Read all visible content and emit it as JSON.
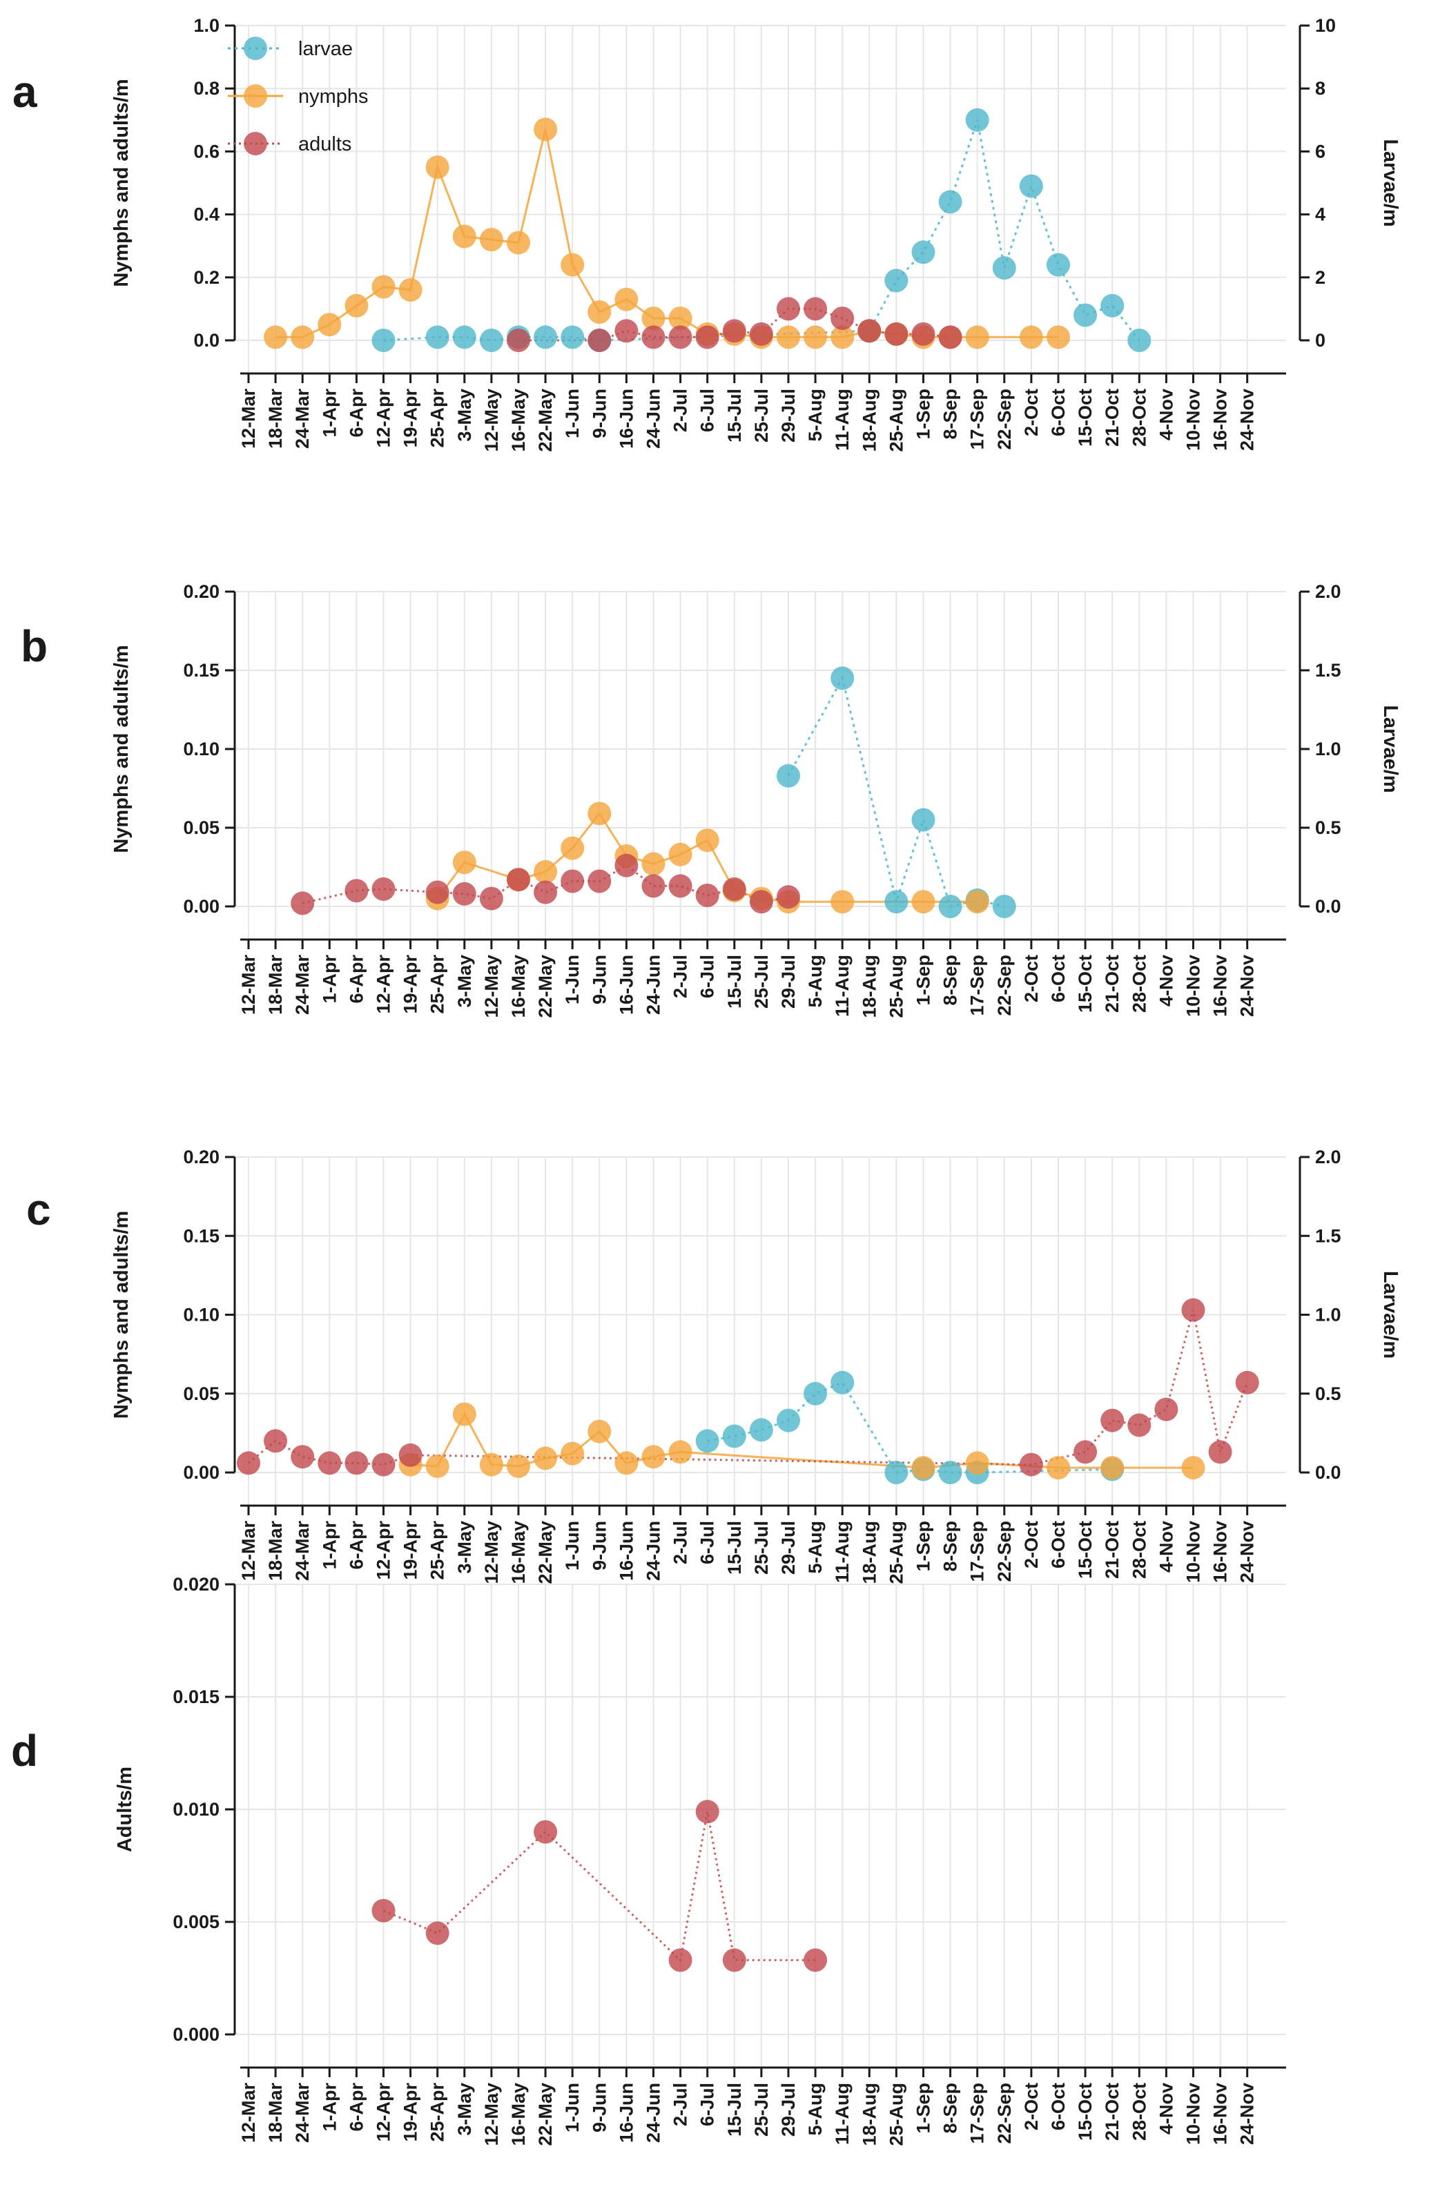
{
  "colors": {
    "larvae": "#4fb7cb",
    "nymphs": "#f5a43b",
    "adults": "#c0494d",
    "grid": "#e6e6e6",
    "axis": "#1a1a1a"
  },
  "chart_data": [
    {
      "type": "line",
      "panel_label": "a",
      "categories": [
        "12-Mar",
        "18-Mar",
        "24-Mar",
        "1-Apr",
        "6-Apr",
        "12-Apr",
        "19-Apr",
        "25-Apr",
        "3-May",
        "12-May",
        "16-May",
        "22-May",
        "1-Jun",
        "9-Jun",
        "16-Jun",
        "24-Jun",
        "2-Jul",
        "6-Jul",
        "15-Jul",
        "25-Jul",
        "29-Jul",
        "5-Aug",
        "11-Aug",
        "18-Aug",
        "25-Aug",
        "1-Sep",
        "8-Sep",
        "17-Sep",
        "22-Sep",
        "2-Oct",
        "6-Oct",
        "15-Oct",
        "21-Oct",
        "28-Oct",
        "4-Nov",
        "10-Nov",
        "16-Nov",
        "24-Nov"
      ],
      "ylabel": "Nymphs and adults/m",
      "ylim": [
        0,
        1.0
      ],
      "yticks": [
        "0.0",
        "0.2",
        "0.4",
        "0.6",
        "0.8",
        "1.0"
      ],
      "y2label": "Larvae/m",
      "y2lim": [
        0,
        10
      ],
      "y2ticks": [
        "0",
        "2",
        "4",
        "6",
        "8",
        "10"
      ],
      "legend": [
        "larvae",
        "nymphs",
        "adults"
      ],
      "series": [
        {
          "name": "nymphs",
          "axis": "left",
          "points": [
            [
              "18-Mar",
              0.01
            ],
            [
              "24-Mar",
              0.01
            ],
            [
              "1-Apr",
              0.05
            ],
            [
              "6-Apr",
              0.11
            ],
            [
              "12-Apr",
              0.17
            ],
            [
              "19-Apr",
              0.16
            ],
            [
              "25-Apr",
              0.55
            ],
            [
              "3-May",
              0.33
            ],
            [
              "12-May",
              0.32
            ],
            [
              "16-May",
              0.31
            ],
            [
              "22-May",
              0.67
            ],
            [
              "1-Jun",
              0.24
            ],
            [
              "9-Jun",
              0.09
            ],
            [
              "16-Jun",
              0.13
            ],
            [
              "24-Jun",
              0.07
            ],
            [
              "2-Jul",
              0.07
            ],
            [
              "6-Jul",
              0.02
            ],
            [
              "15-Jul",
              0.02
            ],
            [
              "25-Jul",
              0.01
            ],
            [
              "29-Jul",
              0.01
            ],
            [
              "5-Aug",
              0.01
            ],
            [
              "11-Aug",
              0.01
            ],
            [
              "18-Aug",
              0.03
            ],
            [
              "25-Aug",
              0.02
            ],
            [
              "1-Sep",
              0.01
            ],
            [
              "8-Sep",
              0.01
            ],
            [
              "17-Sep",
              0.01
            ],
            [
              "2-Oct",
              0.01
            ],
            [
              "6-Oct",
              0.01
            ]
          ]
        },
        {
          "name": "larvae",
          "axis": "right",
          "points": [
            [
              "12-Apr",
              0.0
            ],
            [
              "25-Apr",
              0.1
            ],
            [
              "3-May",
              0.1
            ],
            [
              "12-May",
              0.0
            ],
            [
              "16-May",
              0.1
            ],
            [
              "22-May",
              0.1
            ],
            [
              "1-Jun",
              0.1
            ],
            [
              "9-Jun",
              0.0
            ],
            [
              "18-Aug",
              0.3
            ],
            [
              "25-Aug",
              1.9
            ],
            [
              "1-Sep",
              2.8
            ],
            [
              "8-Sep",
              4.4
            ],
            [
              "17-Sep",
              7.0
            ],
            [
              "22-Sep",
              2.3
            ],
            [
              "2-Oct",
              4.9
            ],
            [
              "6-Oct",
              2.4
            ],
            [
              "15-Oct",
              0.8
            ],
            [
              "21-Oct",
              1.1
            ],
            [
              "28-Oct",
              0.0
            ]
          ]
        },
        {
          "name": "adults",
          "axis": "left",
          "points": [
            [
              "16-May",
              0.0
            ],
            [
              "9-Jun",
              0.0
            ],
            [
              "16-Jun",
              0.03
            ],
            [
              "24-Jun",
              0.01
            ],
            [
              "2-Jul",
              0.01
            ],
            [
              "6-Jul",
              0.01
            ],
            [
              "15-Jul",
              0.03
            ],
            [
              "25-Jul",
              0.02
            ],
            [
              "29-Jul",
              0.1
            ],
            [
              "5-Aug",
              0.1
            ],
            [
              "11-Aug",
              0.07
            ],
            [
              "18-Aug",
              0.03
            ],
            [
              "25-Aug",
              0.02
            ],
            [
              "1-Sep",
              0.02
            ],
            [
              "8-Sep",
              0.01
            ]
          ]
        }
      ]
    },
    {
      "type": "line",
      "panel_label": "b",
      "categories": [
        "12-Mar",
        "18-Mar",
        "24-Mar",
        "1-Apr",
        "6-Apr",
        "12-Apr",
        "19-Apr",
        "25-Apr",
        "3-May",
        "12-May",
        "16-May",
        "22-May",
        "1-Jun",
        "9-Jun",
        "16-Jun",
        "24-Jun",
        "2-Jul",
        "6-Jul",
        "15-Jul",
        "25-Jul",
        "29-Jul",
        "5-Aug",
        "11-Aug",
        "18-Aug",
        "25-Aug",
        "1-Sep",
        "8-Sep",
        "17-Sep",
        "22-Sep",
        "2-Oct",
        "6-Oct",
        "15-Oct",
        "21-Oct",
        "28-Oct",
        "4-Nov",
        "10-Nov",
        "16-Nov",
        "24-Nov"
      ],
      "ylabel": "Nymphs and adults/m",
      "ylim": [
        0,
        0.2
      ],
      "yticks": [
        "0.00",
        "0.05",
        "0.10",
        "0.15",
        "0.20"
      ],
      "y2label": "Larvae/m",
      "y2lim": [
        0,
        2.0
      ],
      "y2ticks": [
        "0.0",
        "0.5",
        "1.0",
        "1.5",
        "2.0"
      ],
      "series": [
        {
          "name": "nymphs",
          "axis": "left",
          "points": [
            [
              "25-Apr",
              0.005
            ],
            [
              "3-May",
              0.028
            ],
            [
              "16-May",
              0.017
            ],
            [
              "22-May",
              0.022
            ],
            [
              "1-Jun",
              0.037
            ],
            [
              "9-Jun",
              0.059
            ],
            [
              "16-Jun",
              0.032
            ],
            [
              "24-Jun",
              0.027
            ],
            [
              "2-Jul",
              0.033
            ],
            [
              "6-Jul",
              0.042
            ],
            [
              "15-Jul",
              0.01
            ],
            [
              "25-Jul",
              0.005
            ],
            [
              "29-Jul",
              0.003
            ],
            [
              "11-Aug",
              0.003
            ],
            [
              "1-Sep",
              0.003
            ],
            [
              "17-Sep",
              0.003
            ]
          ]
        },
        {
          "name": "larvae",
          "axis": "right",
          "points": [
            [
              "29-Jul",
              0.83
            ],
            [
              "11-Aug",
              1.45
            ],
            [
              "25-Aug",
              0.03
            ],
            [
              "1-Sep",
              0.55
            ],
            [
              "8-Sep",
              0.0
            ],
            [
              "17-Sep",
              0.04
            ],
            [
              "22-Sep",
              0.0
            ]
          ]
        },
        {
          "name": "adults",
          "axis": "left",
          "points": [
            [
              "24-Mar",
              0.002
            ],
            [
              "6-Apr",
              0.01
            ],
            [
              "12-Apr",
              0.011
            ],
            [
              "25-Apr",
              0.009
            ],
            [
              "3-May",
              0.008
            ],
            [
              "12-May",
              0.005
            ],
            [
              "16-May",
              0.017
            ],
            [
              "22-May",
              0.009
            ],
            [
              "1-Jun",
              0.016
            ],
            [
              "9-Jun",
              0.016
            ],
            [
              "16-Jun",
              0.026
            ],
            [
              "24-Jun",
              0.013
            ],
            [
              "2-Jul",
              0.013
            ],
            [
              "6-Jul",
              0.007
            ],
            [
              "15-Jul",
              0.011
            ],
            [
              "25-Jul",
              0.003
            ],
            [
              "29-Jul",
              0.006
            ]
          ]
        }
      ]
    },
    {
      "type": "line",
      "panel_label": "c",
      "categories": [
        "12-Mar",
        "18-Mar",
        "24-Mar",
        "1-Apr",
        "6-Apr",
        "12-Apr",
        "19-Apr",
        "25-Apr",
        "3-May",
        "12-May",
        "16-May",
        "22-May",
        "1-Jun",
        "9-Jun",
        "16-Jun",
        "24-Jun",
        "2-Jul",
        "6-Jul",
        "15-Jul",
        "25-Jul",
        "29-Jul",
        "5-Aug",
        "11-Aug",
        "18-Aug",
        "25-Aug",
        "1-Sep",
        "8-Sep",
        "17-Sep",
        "22-Sep",
        "2-Oct",
        "6-Oct",
        "15-Oct",
        "21-Oct",
        "28-Oct",
        "4-Nov",
        "10-Nov",
        "16-Nov",
        "24-Nov"
      ],
      "ylabel": "Nymphs and adults/m",
      "ylim": [
        0,
        0.2
      ],
      "yticks": [
        "0.00",
        "0.05",
        "0.10",
        "0.15",
        "0.20"
      ],
      "y2label": "Larvae/m",
      "y2lim": [
        0,
        2.0
      ],
      "y2ticks": [
        "0.0",
        "0.5",
        "1.0",
        "1.5",
        "2.0"
      ],
      "series": [
        {
          "name": "nymphs",
          "axis": "left",
          "points": [
            [
              "19-Apr",
              0.005
            ],
            [
              "25-Apr",
              0.004
            ],
            [
              "3-May",
              0.037
            ],
            [
              "12-May",
              0.005
            ],
            [
              "16-May",
              0.004
            ],
            [
              "22-May",
              0.009
            ],
            [
              "1-Jun",
              0.012
            ],
            [
              "9-Jun",
              0.026
            ],
            [
              "16-Jun",
              0.006
            ],
            [
              "24-Jun",
              0.01
            ],
            [
              "2-Jul",
              0.013
            ],
            [
              "1-Sep",
              0.003
            ],
            [
              "17-Sep",
              0.006
            ],
            [
              "6-Oct",
              0.003
            ],
            [
              "21-Oct",
              0.003
            ],
            [
              "10-Nov",
              0.003
            ]
          ]
        },
        {
          "name": "larvae",
          "axis": "right",
          "points": [
            [
              "6-Jul",
              0.2
            ],
            [
              "15-Jul",
              0.23
            ],
            [
              "25-Jul",
              0.27
            ],
            [
              "29-Jul",
              0.33
            ],
            [
              "5-Aug",
              0.5
            ],
            [
              "11-Aug",
              0.57
            ],
            [
              "25-Aug",
              0.0
            ],
            [
              "1-Sep",
              0.02
            ],
            [
              "8-Sep",
              0.0
            ],
            [
              "17-Sep",
              0.0
            ],
            [
              "21-Oct",
              0.02
            ]
          ]
        },
        {
          "name": "adults",
          "axis": "left",
          "points": [
            [
              "12-Mar",
              0.006
            ],
            [
              "18-Mar",
              0.02
            ],
            [
              "24-Mar",
              0.01
            ],
            [
              "1-Apr",
              0.006
            ],
            [
              "6-Apr",
              0.006
            ],
            [
              "12-Apr",
              0.005
            ],
            [
              "19-Apr",
              0.011
            ],
            [
              "2-Oct",
              0.005
            ],
            [
              "15-Oct",
              0.013
            ],
            [
              "21-Oct",
              0.033
            ],
            [
              "28-Oct",
              0.03
            ],
            [
              "4-Nov",
              0.04
            ],
            [
              "10-Nov",
              0.103
            ],
            [
              "16-Nov",
              0.013
            ],
            [
              "24-Nov",
              0.057
            ]
          ]
        }
      ]
    },
    {
      "type": "line",
      "panel_label": "d",
      "categories": [
        "12-Mar",
        "18-Mar",
        "24-Mar",
        "1-Apr",
        "6-Apr",
        "12-Apr",
        "19-Apr",
        "25-Apr",
        "3-May",
        "12-May",
        "16-May",
        "22-May",
        "1-Jun",
        "9-Jun",
        "16-Jun",
        "24-Jun",
        "2-Jul",
        "6-Jul",
        "15-Jul",
        "25-Jul",
        "29-Jul",
        "5-Aug",
        "11-Aug",
        "18-Aug",
        "25-Aug",
        "1-Sep",
        "8-Sep",
        "17-Sep",
        "22-Sep",
        "2-Oct",
        "6-Oct",
        "15-Oct",
        "21-Oct",
        "28-Oct",
        "4-Nov",
        "10-Nov",
        "16-Nov",
        "24-Nov"
      ],
      "ylabel": "Adults/m",
      "ylim": [
        0,
        0.02
      ],
      "yticks": [
        "0.000",
        "0.005",
        "0.010",
        "0.015",
        "0.020"
      ],
      "series": [
        {
          "name": "adults",
          "axis": "left",
          "points": [
            [
              "12-Apr",
              0.0055
            ],
            [
              "25-Apr",
              0.0045
            ],
            [
              "22-May",
              0.009
            ],
            [
              "2-Jul",
              0.0033
            ],
            [
              "6-Jul",
              0.0099
            ],
            [
              "15-Jul",
              0.0033
            ],
            [
              "5-Aug",
              0.0033
            ]
          ]
        }
      ]
    }
  ]
}
